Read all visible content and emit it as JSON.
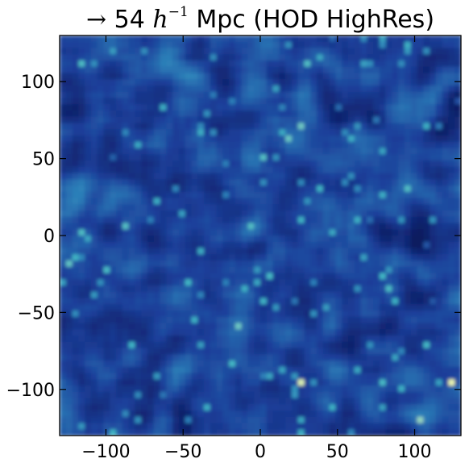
{
  "chart_data": {
    "type": "heatmap",
    "title": {
      "arrow": "→",
      "value": "54",
      "h": "h",
      "exp": "−1",
      "rest": "Mpc (HOD HighRes)"
    },
    "xlabel": "",
    "ylabel": "",
    "xlim": [
      -130,
      130
    ],
    "ylim": [
      -130,
      130
    ],
    "x_ticks": [
      {
        "value": -100,
        "label": "−100"
      },
      {
        "value": -50,
        "label": "−50"
      },
      {
        "value": 0,
        "label": "0"
      },
      {
        "value": 50,
        "label": "50"
      },
      {
        "value": 100,
        "label": "100"
      }
    ],
    "y_ticks": [
      {
        "value": 100,
        "label": "100"
      },
      {
        "value": 50,
        "label": "50"
      },
      {
        "value": 0,
        "label": "0"
      },
      {
        "value": -50,
        "label": "−50"
      },
      {
        "value": -100,
        "label": "−100"
      }
    ],
    "colormap": [
      "#0b1a5e",
      "#1c3f9a",
      "#2c7fb8",
      "#41b6c4",
      "#8fd3c0",
      "#edf8b1"
    ],
    "grid": false,
    "legend": "none"
  }
}
